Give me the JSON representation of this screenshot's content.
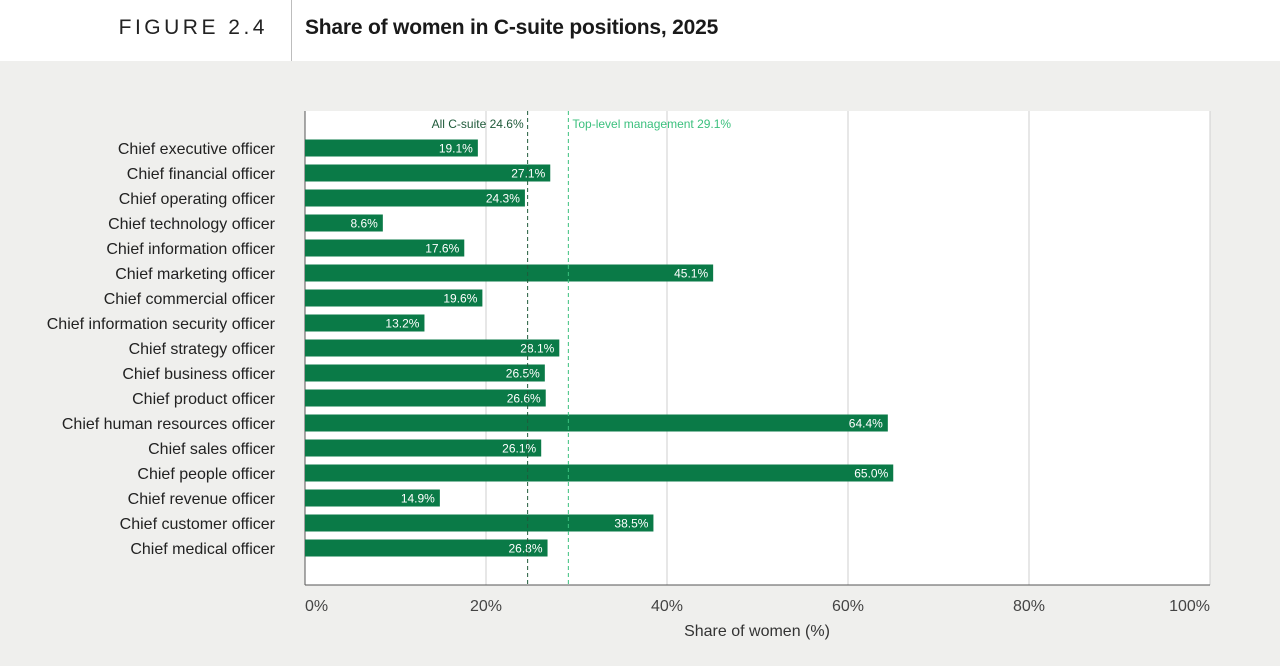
{
  "header": {
    "figure_label": "FIGURE 2.4",
    "title": "Share of women in C-suite positions, 2025"
  },
  "colors": {
    "bar": "#0a7a47",
    "ref_all_csuite": "#1f5a3a",
    "ref_top_level": "#3cc07e",
    "grid": "#cfcfcf",
    "plot_bg": "#ffffff"
  },
  "chart_data": {
    "type": "bar",
    "orientation": "horizontal",
    "categories": [
      "Chief executive officer",
      "Chief financial officer",
      "Chief operating officer",
      "Chief technology officer",
      "Chief information officer",
      "Chief marketing officer",
      "Chief commercial officer",
      "Chief information security officer",
      "Chief strategy officer",
      "Chief business officer",
      "Chief product officer",
      "Chief human resources officer",
      "Chief sales officer",
      "Chief people officer",
      "Chief revenue officer",
      "Chief customer officer",
      "Chief medical officer"
    ],
    "values": [
      19.1,
      27.1,
      24.3,
      8.6,
      17.6,
      45.1,
      19.6,
      13.2,
      28.1,
      26.5,
      26.6,
      64.4,
      26.1,
      65.0,
      14.9,
      38.5,
      26.8
    ],
    "value_labels": [
      "19.1%",
      "27.1%",
      "24.3%",
      "8.6%",
      "17.6%",
      "45.1%",
      "19.6%",
      "13.2%",
      "28.1%",
      "26.5%",
      "26.6%",
      "64.4%",
      "26.1%",
      "65.0%",
      "14.9%",
      "38.5%",
      "26.8%"
    ],
    "xlabel": "Share of women (%)",
    "xlim": [
      0,
      100
    ],
    "xticks": [
      0,
      20,
      40,
      60,
      80,
      100
    ],
    "xtick_labels": [
      "0%",
      "20%",
      "40%",
      "60%",
      "80%",
      "100%"
    ],
    "grid": true,
    "reference_lines": [
      {
        "label": "All C-suite 24.6%",
        "value": 24.6,
        "style": "dashed"
      },
      {
        "label": "Top-level management 29.1%",
        "value": 29.1,
        "style": "dashed"
      }
    ]
  }
}
